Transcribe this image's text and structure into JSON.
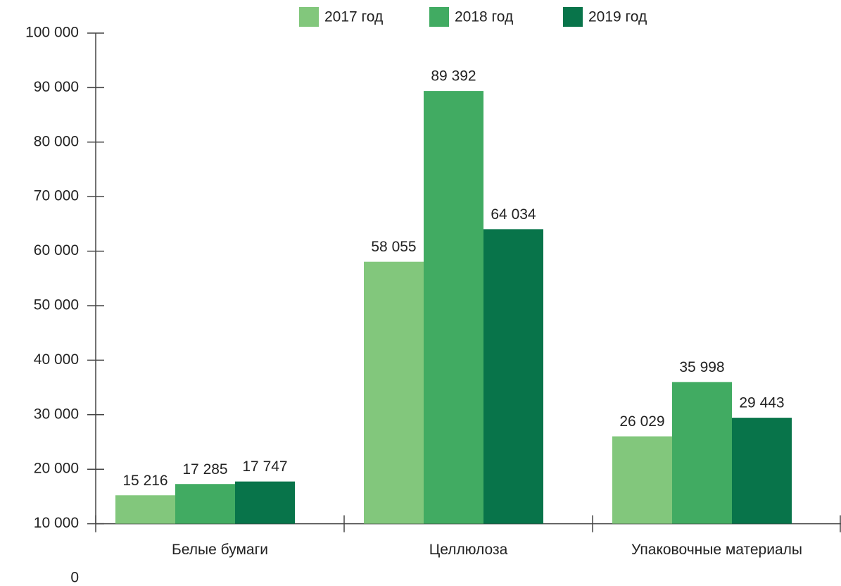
{
  "chart_data": {
    "type": "bar",
    "categories": [
      "Белые бумаги",
      "Целлюлоза",
      "Упаковочные материалы"
    ],
    "series": [
      {
        "name": "2017 год",
        "color": "#82c77c",
        "values": [
          15216,
          58055,
          26029
        ],
        "value_labels": [
          "15 216",
          "58 055",
          "26 029"
        ]
      },
      {
        "name": "2018 год",
        "color": "#41ab62",
        "values": [
          17285,
          89392,
          35998
        ],
        "value_labels": [
          "17 285",
          "89 392",
          "35 998"
        ]
      },
      {
        "name": "2019 год",
        "color": "#08744a",
        "values": [
          17747,
          64034,
          29443
        ],
        "value_labels": [
          "17 747",
          "64 034",
          "29 443"
        ]
      }
    ],
    "ylim": [
      0,
      100000
    ],
    "yticks": [
      0,
      {
        "value": 10000,
        "label": "10 000"
      },
      {
        "value": 20000,
        "label": "20 000"
      },
      {
        "value": 30000,
        "label": "30 000"
      },
      {
        "value": 40000,
        "label": "40 000"
      },
      {
        "value": 50000,
        "label": "50 000"
      },
      {
        "value": 60000,
        "label": "60 000"
      },
      {
        "value": 70000,
        "label": "70 000"
      },
      {
        "value": 80000,
        "label": "80 000"
      },
      {
        "value": 90000,
        "label": "90 000"
      },
      {
        "value": 100000,
        "label": "100 000"
      }
    ],
    "legend": "top",
    "grid": false
  }
}
